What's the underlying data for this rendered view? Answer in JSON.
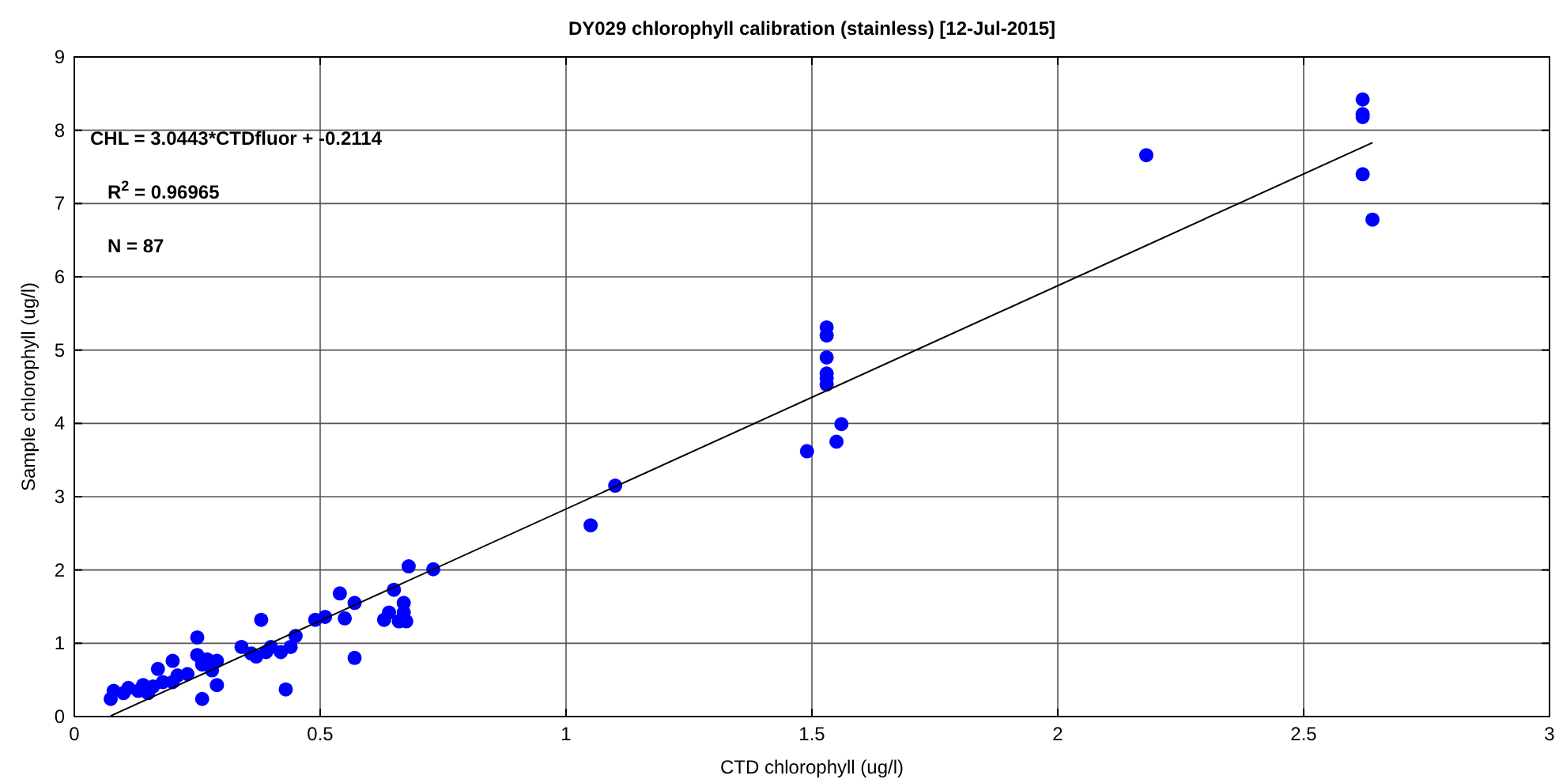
{
  "chart_data": {
    "type": "scatter",
    "title": "DY029 chlorophyll calibration (stainless) [12-Jul-2015]",
    "xlabel": "CTD chlorophyll (ug/l)",
    "ylabel": "Sample chlorophyll (ug/l)",
    "xlim": [
      0,
      3
    ],
    "ylim": [
      0,
      9
    ],
    "xticks": [
      0,
      0.5,
      1,
      1.5,
      2,
      2.5,
      3
    ],
    "yticks": [
      0,
      1,
      2,
      3,
      4,
      5,
      6,
      7,
      8,
      9
    ],
    "grid": true,
    "marker": "circle",
    "annotations": [
      "CHL = 3.0443*CTDfluor + -0.2114",
      "R$^{2}$ = 0.96965",
      "N = 87"
    ],
    "series": [
      {
        "color": "#0000ff",
        "x": [
          0.074,
          0.08,
          0.1,
          0.11,
          0.13,
          0.14,
          0.15,
          0.16,
          0.17,
          0.18,
          0.2,
          0.2,
          0.21,
          0.23,
          0.25,
          0.25,
          0.26,
          0.26,
          0.27,
          0.28,
          0.29,
          0.29,
          0.34,
          0.36,
          0.37,
          0.38,
          0.39,
          0.4,
          0.42,
          0.43,
          0.44,
          0.45,
          0.49,
          0.51,
          0.54,
          0.55,
          0.57,
          0.57,
          0.63,
          0.64,
          0.65,
          0.66,
          0.67,
          0.67,
          0.68,
          0.675,
          0.73,
          1.05,
          1.1,
          1.49,
          1.55,
          1.56,
          1.53,
          1.53,
          1.53,
          1.53,
          1.53,
          1.53,
          2.18,
          2.62,
          2.62,
          2.62,
          2.62,
          2.64
        ],
        "values": [
          0.24,
          0.35,
          0.32,
          0.39,
          0.35,
          0.43,
          0.32,
          0.41,
          0.65,
          0.47,
          0.76,
          0.47,
          0.56,
          0.58,
          1.08,
          0.84,
          0.24,
          0.71,
          0.78,
          0.63,
          0.76,
          0.43,
          0.95,
          0.86,
          0.82,
          1.32,
          0.88,
          0.95,
          0.88,
          0.37,
          0.95,
          1.1,
          1.32,
          1.36,
          1.68,
          1.34,
          1.55,
          0.8,
          1.32,
          1.42,
          1.73,
          1.3,
          1.55,
          1.42,
          2.05,
          1.3,
          2.01,
          2.61,
          3.15,
          3.62,
          3.75,
          3.99,
          5.31,
          5.2,
          4.9,
          4.68,
          4.62,
          4.53,
          7.66,
          8.42,
          8.22,
          8.18,
          7.4,
          6.78
        ]
      },
      {
        "type": "line",
        "color": "#000000",
        "marker": "none",
        "x": [
          0.074,
          2.64
        ],
        "values": [
          0.01,
          7.83
        ]
      }
    ]
  }
}
